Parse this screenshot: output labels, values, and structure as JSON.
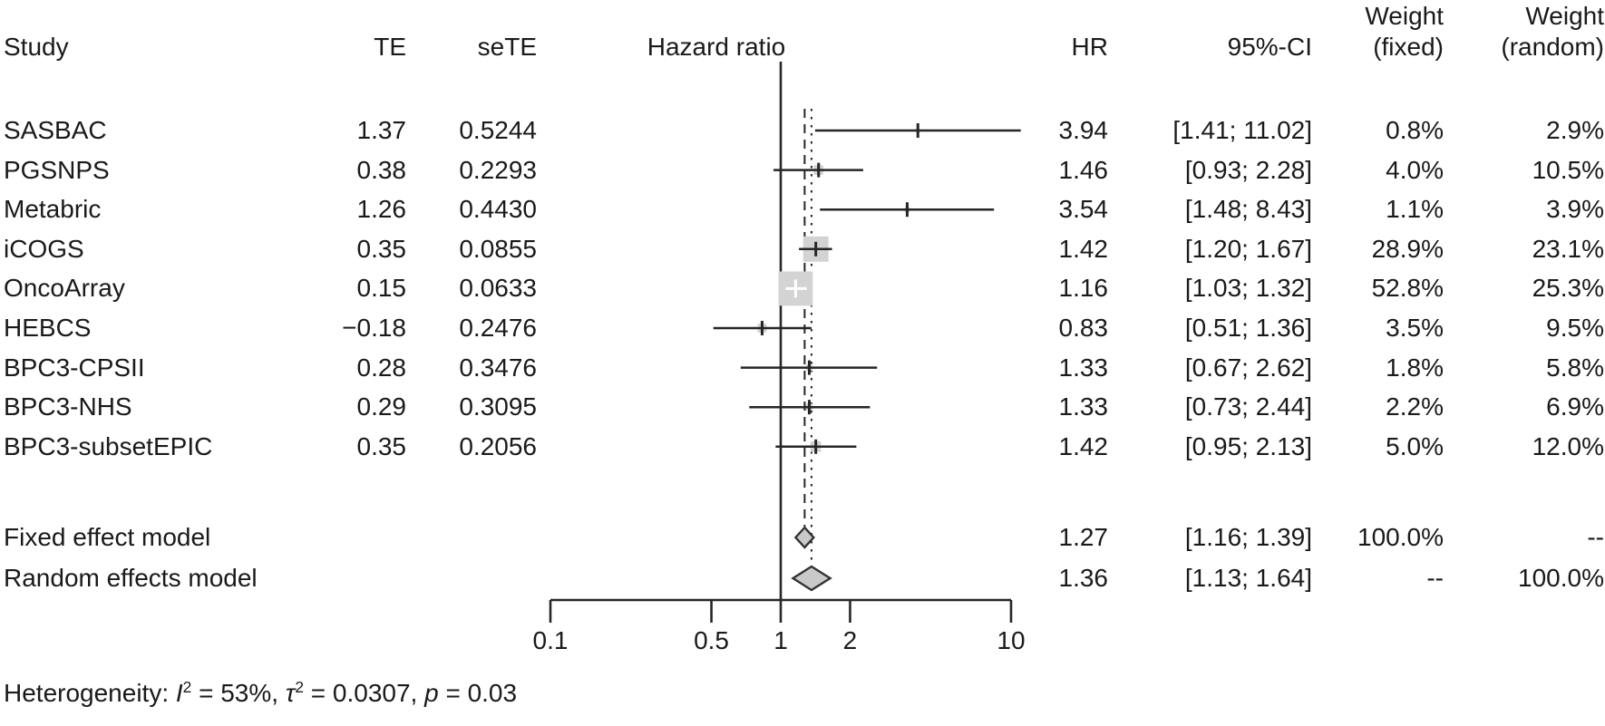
{
  "figure": {
    "header": {
      "study": "Study",
      "te": "TE",
      "sete": "seTE",
      "plot_title": "Hazard ratio",
      "hr": "HR",
      "ci": "95%-CI",
      "weight_word_fixed": "Weight",
      "weight_word_random": "Weight",
      "weight_fixed": "(fixed)",
      "weight_random": "(random)"
    }
  },
  "chart_data": {
    "type": "forest",
    "title": "Hazard ratio",
    "x_scale": "log10",
    "xlim": [
      0.1,
      10
    ],
    "ref_line": 1.0,
    "x_ticks": [
      "0.1",
      "0.5",
      "1",
      "2",
      "10"
    ],
    "x_tick_values": [
      0.1,
      0.5,
      1,
      2,
      10
    ],
    "legend_position": "none",
    "grid": false,
    "studies": [
      {
        "study": "SASBAC",
        "te": "1.37",
        "sete": "0.5244",
        "hr": 3.94,
        "ci_lo": 1.41,
        "ci_hi": 11.02,
        "hr_label": "3.94",
        "ci_label": "[1.41; 11.02]",
        "weight_fixed": "0.8%",
        "weight_random": "2.9%",
        "weight_fixed_value": 0.8
      },
      {
        "study": "PGSNPS",
        "te": "0.38",
        "sete": "0.2293",
        "hr": 1.46,
        "ci_lo": 0.93,
        "ci_hi": 2.28,
        "hr_label": "1.46",
        "ci_label": "[0.93; 2.28]",
        "weight_fixed": "4.0%",
        "weight_random": "10.5%",
        "weight_fixed_value": 4.0
      },
      {
        "study": "Metabric",
        "te": "1.26",
        "sete": "0.4430",
        "hr": 3.54,
        "ci_lo": 1.48,
        "ci_hi": 8.43,
        "hr_label": "3.54",
        "ci_label": "[1.48; 8.43]",
        "weight_fixed": "1.1%",
        "weight_random": "3.9%",
        "weight_fixed_value": 1.1
      },
      {
        "study": "iCOGS",
        "te": "0.35",
        "sete": "0.0855",
        "hr": 1.42,
        "ci_lo": 1.2,
        "ci_hi": 1.67,
        "hr_label": "1.42",
        "ci_label": "[1.20; 1.67]",
        "weight_fixed": "28.9%",
        "weight_random": "23.1%",
        "weight_fixed_value": 28.9
      },
      {
        "study": "OncoArray",
        "te": "0.15",
        "sete": "0.0633",
        "hr": 1.16,
        "ci_lo": 1.03,
        "ci_hi": 1.32,
        "hr_label": "1.16",
        "ci_label": "[1.03; 1.32]",
        "weight_fixed": "52.8%",
        "weight_random": "25.3%",
        "weight_fixed_value": 52.8
      },
      {
        "study": "HEBCS",
        "te": "−0.18",
        "sete": "0.2476",
        "hr": 0.83,
        "ci_lo": 0.51,
        "ci_hi": 1.36,
        "hr_label": "0.83",
        "ci_label": "[0.51; 1.36]",
        "weight_fixed": "3.5%",
        "weight_random": "9.5%",
        "weight_fixed_value": 3.5
      },
      {
        "study": "BPC3-CPSII",
        "te": "0.28",
        "sete": "0.3476",
        "hr": 1.33,
        "ci_lo": 0.67,
        "ci_hi": 2.62,
        "hr_label": "1.33",
        "ci_label": "[0.67; 2.62]",
        "weight_fixed": "1.8%",
        "weight_random": "5.8%",
        "weight_fixed_value": 1.8
      },
      {
        "study": "BPC3-NHS",
        "te": "0.29",
        "sete": "0.3095",
        "hr": 1.33,
        "ci_lo": 0.73,
        "ci_hi": 2.44,
        "hr_label": "1.33",
        "ci_label": "[0.73; 2.44]",
        "weight_fixed": "2.2%",
        "weight_random": "6.9%",
        "weight_fixed_value": 2.2
      },
      {
        "study": "BPC3-subsetEPIC",
        "te": "0.35",
        "sete": "0.2056",
        "hr": 1.42,
        "ci_lo": 0.95,
        "ci_hi": 2.13,
        "hr_label": "1.42",
        "ci_label": "[0.95; 2.13]",
        "weight_fixed": "5.0%",
        "weight_random": "12.0%",
        "weight_fixed_value": 5.0
      }
    ],
    "models": [
      {
        "label": "Fixed effect model",
        "hr": 1.27,
        "ci_lo": 1.16,
        "ci_hi": 1.39,
        "hr_label": "1.27",
        "ci_label": "[1.16; 1.39]",
        "weight_fixed": "100.0%",
        "weight_random": "--"
      },
      {
        "label": "Random effects model",
        "hr": 1.36,
        "ci_lo": 1.13,
        "ci_hi": 1.64,
        "hr_label": "1.36",
        "ci_label": "[1.13; 1.64]",
        "weight_fixed": "--",
        "weight_random": "100.0%"
      }
    ],
    "footnote": {
      "prefix": "Heterogeneity: ",
      "i_sym": "I",
      "i_sup": "2",
      "i_val": " = 53%, ",
      "tau_sym": "τ",
      "tau_sup": "2",
      "tau_val": " = 0.0307, ",
      "p_sym": "p",
      "p_val": " = 0.03"
    },
    "colors": {
      "square_fill": "#d3d3d3",
      "diamond_fill": "#c9c9c9",
      "line": "#262626",
      "text": "#1a1a1a",
      "white_marker": "#ffffff"
    }
  }
}
